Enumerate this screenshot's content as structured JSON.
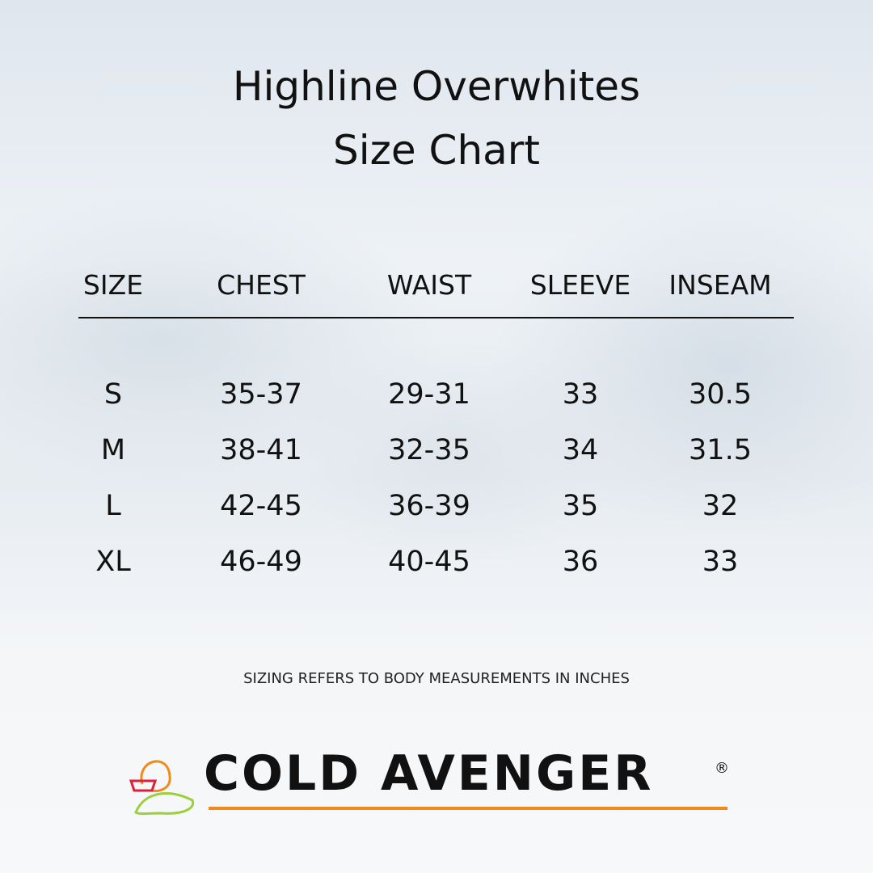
{
  "title": [
    "Highline Overwhites",
    "Size Chart"
  ],
  "table": {
    "headers": [
      "SIZE",
      "CHEST",
      "WAIST",
      "SLEEVE",
      "INSEAM"
    ],
    "rows": [
      [
        "S",
        "35-37",
        "29-31",
        33,
        30.5
      ],
      [
        "M",
        "38-41",
        "32-35",
        34,
        31.5
      ],
      [
        "L",
        "42-45",
        "36-39",
        35,
        32
      ],
      [
        "XL",
        "46-49",
        "40-45",
        36,
        33
      ]
    ]
  },
  "note": "SIZING REFERS TO BODY MEASUREMENTS IN INCHES",
  "logo": {
    "text": "COLD AVENGER",
    "mark": "®"
  }
}
